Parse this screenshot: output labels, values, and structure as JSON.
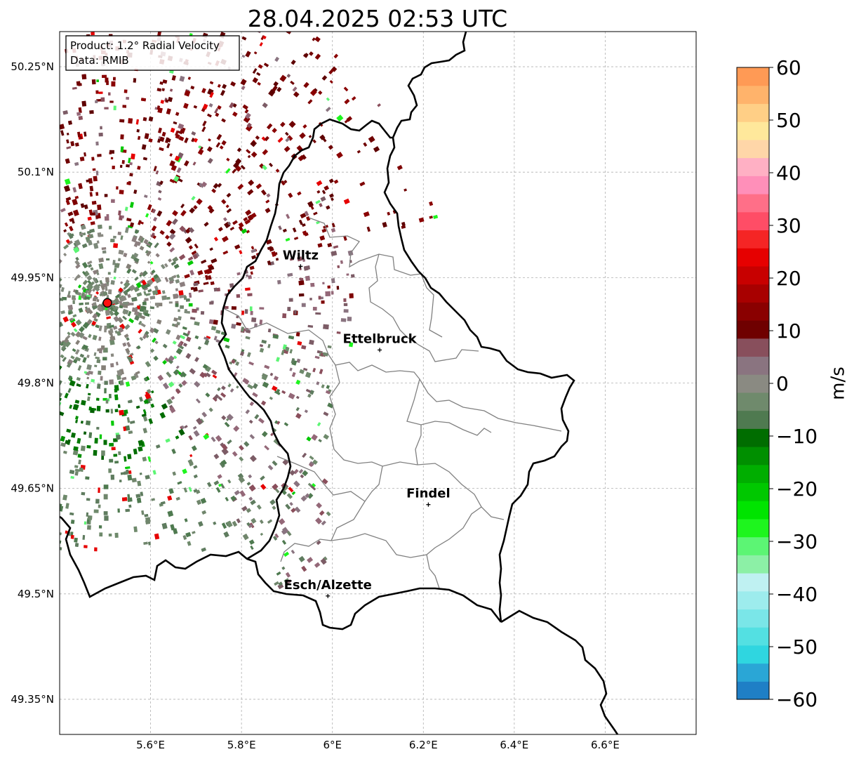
{
  "title": "28.04.2025 02:53 UTC",
  "info_box": {
    "product": "Product: 1.2° Radial Velocity",
    "data": "Data: RMIB"
  },
  "axes": {
    "lon_ticks": [
      "5.6°E",
      "5.8°E",
      "6°E",
      "6.2°E",
      "6.4°E",
      "6.6°E"
    ],
    "lat_ticks": [
      "50.25°N",
      "50.1°N",
      "49.95°N",
      "49.8°N",
      "49.65°N",
      "49.5°N",
      "49.35°N"
    ],
    "lon_range": [
      5.4,
      6.8
    ],
    "lat_range": [
      49.3,
      50.3
    ],
    "grid": true
  },
  "colorbar": {
    "unit": "m/s",
    "range": [
      -60,
      60
    ],
    "tick_labels": [
      "60",
      "50",
      "40",
      "30",
      "20",
      "10",
      "0",
      "−10",
      "−20",
      "−30",
      "−40",
      "−50",
      "−60"
    ],
    "colors": [
      "#1f7fc6",
      "#2aa6d6",
      "#2fd6e0",
      "#53e0e2",
      "#7ae6e8",
      "#9deced",
      "#bff1f2",
      "#8cf0a6",
      "#5cf574",
      "#1ef51e",
      "#00e400",
      "#00c800",
      "#00ae00",
      "#008f00",
      "#006d00",
      "#4f7a50",
      "#6f8a6c",
      "#8a8a82",
      "#8a7480",
      "#884f5c",
      "#6f0000",
      "#8a0000",
      "#a80000",
      "#c80000",
      "#e60000",
      "#f52525",
      "#ff4d66",
      "#ff6f88",
      "#ff8fb9",
      "#ffb0c4",
      "#ffd6a8",
      "#ffe89b",
      "#ffcf86",
      "#ffb36b",
      "#ff9a55"
    ]
  },
  "cities": [
    {
      "name": "Wiltz",
      "lon": 5.93,
      "lat": 49.966
    },
    {
      "name": "Ettelbruck",
      "lon": 6.104,
      "lat": 49.847
    },
    {
      "name": "Findel",
      "lon": 6.211,
      "lat": 49.627
    },
    {
      "name": "Esch/Alzette",
      "lon": 5.99,
      "lat": 49.497
    }
  ],
  "radar_site": {
    "lon": 5.505,
    "lat": 49.914
  }
}
